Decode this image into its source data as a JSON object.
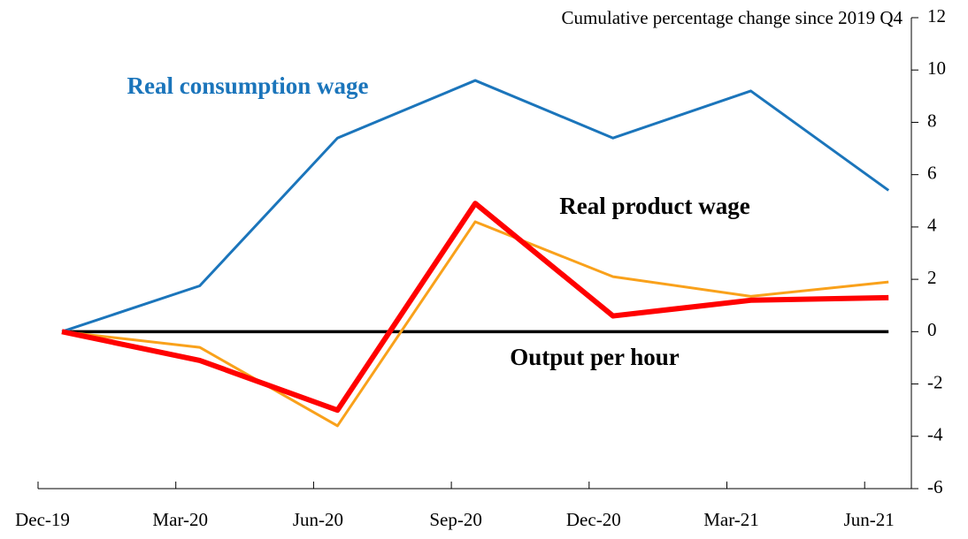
{
  "chart_data": {
    "type": "line",
    "y_axis_title": "Cumulative percentage change since 2019 Q4",
    "categories": [
      "Dec-19",
      "Mar-20",
      "Jun-20",
      "Sep-20",
      "Dec-20",
      "Mar-21",
      "Jun-21"
    ],
    "series": [
      {
        "name": "Real consumption wage",
        "color": "#1b75bb",
        "values": [
          0,
          1.75,
          7.4,
          9.6,
          7.4,
          9.2,
          5.4
        ]
      },
      {
        "name": "Real product wage",
        "color": "#f9a11b",
        "values": [
          0,
          -0.6,
          -3.6,
          4.2,
          2.1,
          1.35,
          1.9
        ]
      },
      {
        "name": "Output per hour",
        "color": "#ff0000",
        "values": [
          0,
          -1.1,
          -3.0,
          4.9,
          0.6,
          1.2,
          1.3
        ]
      }
    ],
    "ylim": [
      -6,
      12
    ],
    "yticks": [
      -6,
      -4,
      -2,
      0,
      2,
      4,
      6,
      8,
      10,
      12
    ]
  }
}
